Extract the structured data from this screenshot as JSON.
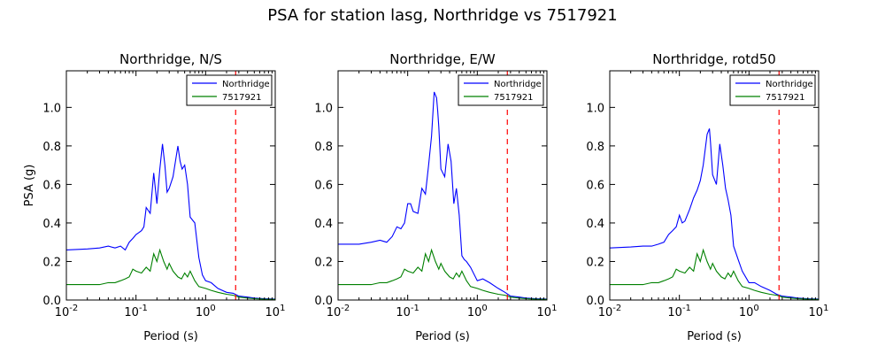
{
  "figure": {
    "suptitle": "PSA for station lasg, Northridge vs 7517921",
    "colors": {
      "series1": "#0000ff",
      "series2": "#008000",
      "marker": "#ff0000"
    }
  },
  "chart_data": [
    {
      "type": "line",
      "title": "Northridge, N/S",
      "xlabel": "Period (s)",
      "ylabel": "PSA (g)",
      "xscale": "log",
      "xlim": [
        0.01,
        10
      ],
      "ylim": [
        0,
        1.19
      ],
      "xticks": [
        0.01,
        0.1,
        1,
        10
      ],
      "yticks": [
        0.0,
        0.2,
        0.4,
        0.6,
        0.8,
        1.0
      ],
      "ytick_labels": [
        "0.0",
        "0.2",
        "0.4",
        "0.6",
        "0.8",
        "1.0"
      ],
      "legend_position": "top-right",
      "vline": 2.7,
      "series": [
        {
          "name": "Northridge",
          "color": "#0000ff",
          "x": [
            0.01,
            0.02,
            0.03,
            0.04,
            0.05,
            0.06,
            0.07,
            0.08,
            0.09,
            0.1,
            0.11,
            0.12,
            0.13,
            0.14,
            0.16,
            0.18,
            0.2,
            0.22,
            0.24,
            0.26,
            0.28,
            0.3,
            0.34,
            0.4,
            0.43,
            0.46,
            0.5,
            0.55,
            0.6,
            0.7,
            0.8,
            0.9,
            1.0,
            1.2,
            1.5,
            2.0,
            2.5,
            3.0,
            4.0,
            5.0,
            7.0,
            10.0
          ],
          "y": [
            0.26,
            0.265,
            0.27,
            0.28,
            0.27,
            0.28,
            0.26,
            0.3,
            0.32,
            0.34,
            0.35,
            0.36,
            0.38,
            0.48,
            0.45,
            0.66,
            0.5,
            0.68,
            0.81,
            0.7,
            0.56,
            0.58,
            0.64,
            0.8,
            0.72,
            0.68,
            0.7,
            0.6,
            0.43,
            0.4,
            0.22,
            0.13,
            0.1,
            0.09,
            0.06,
            0.04,
            0.035,
            0.02,
            0.015,
            0.01,
            0.007,
            0.005
          ]
        },
        {
          "name": "7517921",
          "color": "#008000",
          "x": [
            0.01,
            0.02,
            0.03,
            0.04,
            0.05,
            0.06,
            0.07,
            0.08,
            0.09,
            0.1,
            0.12,
            0.14,
            0.16,
            0.18,
            0.2,
            0.22,
            0.25,
            0.28,
            0.3,
            0.34,
            0.4,
            0.45,
            0.5,
            0.55,
            0.6,
            0.7,
            0.8,
            1.0,
            1.2,
            1.5,
            2.0,
            2.5,
            3.0,
            4.0,
            5.0,
            7.0,
            10.0
          ],
          "y": [
            0.08,
            0.08,
            0.08,
            0.09,
            0.09,
            0.1,
            0.11,
            0.12,
            0.16,
            0.15,
            0.14,
            0.17,
            0.15,
            0.24,
            0.2,
            0.26,
            0.2,
            0.16,
            0.19,
            0.15,
            0.12,
            0.11,
            0.14,
            0.12,
            0.15,
            0.1,
            0.07,
            0.06,
            0.05,
            0.04,
            0.03,
            0.025,
            0.015,
            0.01,
            0.007,
            0.004,
            0.003
          ]
        }
      ]
    },
    {
      "type": "line",
      "title": "Northridge, E/W",
      "xlabel": "Period (s)",
      "ylabel": "",
      "xscale": "log",
      "xlim": [
        0.01,
        10
      ],
      "ylim": [
        0,
        1.19
      ],
      "xticks": [
        0.01,
        0.1,
        1,
        10
      ],
      "yticks": [
        0.0,
        0.2,
        0.4,
        0.6,
        0.8,
        1.0
      ],
      "ytick_labels": [
        "0.0",
        "0.2",
        "0.4",
        "0.6",
        "0.8",
        "1.0"
      ],
      "legend_position": "top-right",
      "vline": 2.7,
      "series": [
        {
          "name": "Northridge",
          "color": "#0000ff",
          "x": [
            0.01,
            0.02,
            0.03,
            0.04,
            0.05,
            0.06,
            0.07,
            0.08,
            0.09,
            0.1,
            0.11,
            0.12,
            0.14,
            0.16,
            0.18,
            0.2,
            0.22,
            0.24,
            0.26,
            0.27,
            0.28,
            0.3,
            0.34,
            0.38,
            0.42,
            0.46,
            0.5,
            0.55,
            0.6,
            0.65,
            0.7,
            0.8,
            1.0,
            1.2,
            1.5,
            2.0,
            2.5,
            3.0,
            4.0,
            5.0,
            7.0,
            10.0
          ],
          "y": [
            0.29,
            0.29,
            0.3,
            0.31,
            0.3,
            0.33,
            0.38,
            0.37,
            0.4,
            0.5,
            0.5,
            0.46,
            0.45,
            0.58,
            0.55,
            0.7,
            0.85,
            1.08,
            1.05,
            0.98,
            0.9,
            0.68,
            0.64,
            0.81,
            0.72,
            0.5,
            0.58,
            0.44,
            0.23,
            0.21,
            0.2,
            0.17,
            0.1,
            0.11,
            0.09,
            0.06,
            0.04,
            0.02,
            0.015,
            0.01,
            0.007,
            0.005
          ]
        },
        {
          "name": "7517921",
          "color": "#008000",
          "x": [
            0.01,
            0.02,
            0.03,
            0.04,
            0.05,
            0.06,
            0.07,
            0.08,
            0.09,
            0.1,
            0.12,
            0.14,
            0.16,
            0.18,
            0.2,
            0.22,
            0.25,
            0.28,
            0.3,
            0.34,
            0.4,
            0.45,
            0.5,
            0.55,
            0.6,
            0.7,
            0.8,
            1.0,
            1.2,
            1.5,
            2.0,
            2.5,
            3.0,
            4.0,
            5.0,
            7.0,
            10.0
          ],
          "y": [
            0.08,
            0.08,
            0.08,
            0.09,
            0.09,
            0.1,
            0.11,
            0.12,
            0.16,
            0.15,
            0.14,
            0.17,
            0.15,
            0.24,
            0.2,
            0.26,
            0.2,
            0.16,
            0.19,
            0.15,
            0.12,
            0.11,
            0.14,
            0.12,
            0.15,
            0.1,
            0.07,
            0.06,
            0.05,
            0.04,
            0.03,
            0.025,
            0.015,
            0.01,
            0.007,
            0.004,
            0.003
          ]
        }
      ]
    },
    {
      "type": "line",
      "title": "Northridge, rotd50",
      "xlabel": "Period (s)",
      "ylabel": "",
      "xscale": "log",
      "xlim": [
        0.01,
        10
      ],
      "ylim": [
        0,
        1.19
      ],
      "xticks": [
        0.01,
        0.1,
        1,
        10
      ],
      "yticks": [
        0.0,
        0.2,
        0.4,
        0.6,
        0.8,
        1.0
      ],
      "ytick_labels": [
        "0.0",
        "0.2",
        "0.4",
        "0.6",
        "0.8",
        "1.0"
      ],
      "legend_position": "top-right",
      "vline": 2.7,
      "series": [
        {
          "name": "Northridge",
          "color": "#0000ff",
          "x": [
            0.01,
            0.02,
            0.03,
            0.04,
            0.05,
            0.06,
            0.07,
            0.08,
            0.09,
            0.1,
            0.11,
            0.12,
            0.14,
            0.16,
            0.18,
            0.2,
            0.22,
            0.25,
            0.27,
            0.28,
            0.3,
            0.34,
            0.38,
            0.42,
            0.46,
            0.5,
            0.55,
            0.6,
            0.7,
            0.8,
            1.0,
            1.2,
            1.5,
            2.0,
            2.5,
            3.0,
            4.0,
            5.0,
            7.0,
            10.0
          ],
          "y": [
            0.27,
            0.275,
            0.28,
            0.28,
            0.29,
            0.3,
            0.34,
            0.36,
            0.38,
            0.44,
            0.4,
            0.41,
            0.47,
            0.53,
            0.57,
            0.62,
            0.7,
            0.86,
            0.89,
            0.82,
            0.65,
            0.6,
            0.81,
            0.7,
            0.58,
            0.52,
            0.44,
            0.28,
            0.21,
            0.15,
            0.09,
            0.09,
            0.07,
            0.05,
            0.03,
            0.02,
            0.015,
            0.01,
            0.007,
            0.005
          ]
        },
        {
          "name": "7517921",
          "color": "#008000",
          "x": [
            0.01,
            0.02,
            0.03,
            0.04,
            0.05,
            0.06,
            0.07,
            0.08,
            0.09,
            0.1,
            0.12,
            0.14,
            0.16,
            0.18,
            0.2,
            0.22,
            0.25,
            0.28,
            0.3,
            0.34,
            0.4,
            0.45,
            0.5,
            0.55,
            0.6,
            0.7,
            0.8,
            1.0,
            1.2,
            1.5,
            2.0,
            2.5,
            3.0,
            4.0,
            5.0,
            7.0,
            10.0
          ],
          "y": [
            0.08,
            0.08,
            0.08,
            0.09,
            0.09,
            0.1,
            0.11,
            0.12,
            0.16,
            0.15,
            0.14,
            0.17,
            0.15,
            0.24,
            0.2,
            0.26,
            0.2,
            0.16,
            0.19,
            0.15,
            0.12,
            0.11,
            0.14,
            0.12,
            0.15,
            0.1,
            0.07,
            0.06,
            0.05,
            0.04,
            0.03,
            0.025,
            0.015,
            0.01,
            0.007,
            0.004,
            0.003
          ]
        }
      ]
    }
  ]
}
